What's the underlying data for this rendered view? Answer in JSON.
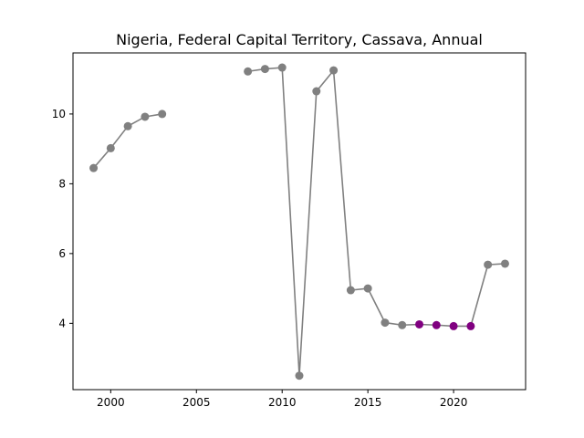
{
  "chart_data": {
    "type": "line",
    "title": "Nigeria, Federal Capital Territory, Cassava, Annual",
    "xlabel": "",
    "ylabel": "",
    "xlim": [
      1997.8,
      2024.2
    ],
    "ylim": [
      2.1,
      11.75
    ],
    "x_ticks": [
      2000,
      2005,
      2010,
      2015,
      2020
    ],
    "y_ticks": [
      4,
      6,
      8,
      10
    ],
    "grid": false,
    "line_color": "#808080",
    "segments": [
      {
        "x": [
          1999,
          2000,
          2001,
          2002,
          2003
        ],
        "y": [
          8.45,
          9.02,
          9.65,
          9.92,
          10.0
        ]
      },
      {
        "x": [
          2008,
          2009,
          2010,
          2011,
          2012,
          2013,
          2014,
          2015,
          2016,
          2017,
          2018,
          2019,
          2020,
          2021,
          2022,
          2023
        ],
        "y": [
          11.22,
          11.29,
          11.33,
          2.5,
          10.65,
          11.25,
          4.95,
          5.0,
          4.02,
          3.95,
          3.97,
          3.95,
          3.92,
          3.92,
          5.68,
          5.71
        ]
      }
    ],
    "points": [
      {
        "x": 1999,
        "y": 8.45,
        "color": "#808080"
      },
      {
        "x": 2000,
        "y": 9.02,
        "color": "#808080"
      },
      {
        "x": 2001,
        "y": 9.65,
        "color": "#808080"
      },
      {
        "x": 2002,
        "y": 9.92,
        "color": "#808080"
      },
      {
        "x": 2003,
        "y": 10.0,
        "color": "#808080"
      },
      {
        "x": 2008,
        "y": 11.22,
        "color": "#808080"
      },
      {
        "x": 2009,
        "y": 11.29,
        "color": "#808080"
      },
      {
        "x": 2010,
        "y": 11.33,
        "color": "#808080"
      },
      {
        "x": 2011,
        "y": 2.5,
        "color": "#808080"
      },
      {
        "x": 2012,
        "y": 10.65,
        "color": "#808080"
      },
      {
        "x": 2013,
        "y": 11.25,
        "color": "#808080"
      },
      {
        "x": 2014,
        "y": 4.95,
        "color": "#808080"
      },
      {
        "x": 2015,
        "y": 5.0,
        "color": "#808080"
      },
      {
        "x": 2016,
        "y": 4.02,
        "color": "#808080"
      },
      {
        "x": 2017,
        "y": 3.95,
        "color": "#808080"
      },
      {
        "x": 2018,
        "y": 3.97,
        "color": "#800080"
      },
      {
        "x": 2019,
        "y": 3.95,
        "color": "#800080"
      },
      {
        "x": 2020,
        "y": 3.92,
        "color": "#800080"
      },
      {
        "x": 2021,
        "y": 3.92,
        "color": "#800080"
      },
      {
        "x": 2022,
        "y": 5.68,
        "color": "#808080"
      },
      {
        "x": 2023,
        "y": 5.71,
        "color": "#808080"
      }
    ]
  }
}
